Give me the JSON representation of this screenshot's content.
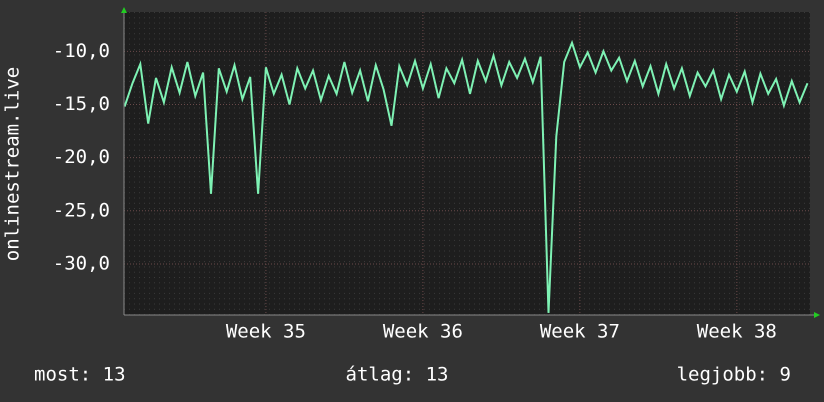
{
  "chart_data": {
    "type": "line",
    "ylabel": "onlinestream.live",
    "x": [
      34.1,
      34.15,
      34.2,
      34.25,
      34.3,
      34.35,
      34.4,
      34.45,
      34.5,
      34.55,
      34.6,
      34.65,
      34.7,
      34.75,
      34.8,
      34.85,
      34.9,
      34.95,
      35.0,
      35.05,
      35.1,
      35.15,
      35.2,
      35.25,
      35.3,
      35.35,
      35.4,
      35.45,
      35.5,
      35.55,
      35.6,
      35.65,
      35.7,
      35.75,
      35.8,
      35.85,
      35.9,
      35.95,
      36.0,
      36.05,
      36.1,
      36.15,
      36.2,
      36.25,
      36.3,
      36.35,
      36.4,
      36.45,
      36.5,
      36.55,
      36.6,
      36.65,
      36.7,
      36.75,
      36.8,
      36.85,
      36.9,
      36.95,
      37.0,
      37.05,
      37.1,
      37.15,
      37.2,
      37.25,
      37.3,
      37.35,
      37.4,
      37.45,
      37.5,
      37.55,
      37.6,
      37.65,
      37.7,
      37.75,
      37.8,
      37.85,
      37.9,
      37.95,
      38.0,
      38.05,
      38.1,
      38.15,
      38.2,
      38.25,
      38.3,
      38.35,
      38.4,
      38.45
    ],
    "values": [
      -15.2,
      -13.0,
      -11.2,
      -16.8,
      -12.5,
      -14.8,
      -11.5,
      -13.9,
      -11.0,
      -14.2,
      -12.0,
      -23.4,
      -11.6,
      -13.8,
      -11.3,
      -14.5,
      -12.4,
      -23.4,
      -11.5,
      -14.0,
      -12.2,
      -15.0,
      -11.6,
      -13.5,
      -11.8,
      -14.6,
      -12.3,
      -14.0,
      -11.0,
      -13.9,
      -11.8,
      -14.7,
      -11.3,
      -13.6,
      -17.0,
      -11.4,
      -13.2,
      -10.9,
      -13.5,
      -11.2,
      -14.4,
      -11.6,
      -13.0,
      -10.8,
      -14.0,
      -10.9,
      -12.8,
      -10.4,
      -13.2,
      -11.0,
      -12.5,
      -10.7,
      -12.9,
      -10.5,
      -34.6,
      -18.0,
      -11.0,
      -9.2,
      -11.5,
      -10.1,
      -12.0,
      -10.0,
      -11.8,
      -10.6,
      -12.8,
      -10.9,
      -13.3,
      -11.4,
      -14.0,
      -11.2,
      -13.5,
      -11.6,
      -14.2,
      -12.0,
      -13.3,
      -11.8,
      -14.5,
      -12.2,
      -13.8,
      -11.9,
      -14.8,
      -12.1,
      -14.0,
      -12.6,
      -15.1,
      -12.8,
      -14.8,
      -13.0
    ],
    "color": "#7ef2b4",
    "xlim": [
      34.096,
      38.466
    ],
    "xticks": [
      {
        "value": 35,
        "label": "Week 35"
      },
      {
        "value": 36,
        "label": "Week 36"
      },
      {
        "value": 37,
        "label": "Week 37"
      },
      {
        "value": 38,
        "label": "Week 38"
      }
    ],
    "ylim": [
      -34.8,
      -6.3
    ],
    "yticks": [
      {
        "value": -10,
        "label": "-10,0"
      },
      {
        "value": -15,
        "label": "-15,0"
      },
      {
        "value": -20,
        "label": "-20,0"
      },
      {
        "value": -25,
        "label": "-25,0"
      },
      {
        "value": -30,
        "label": "-30,0"
      }
    ],
    "grid": true,
    "footer": [
      "most: 13",
      "átlag: 13",
      "legjobb: 9"
    ]
  }
}
